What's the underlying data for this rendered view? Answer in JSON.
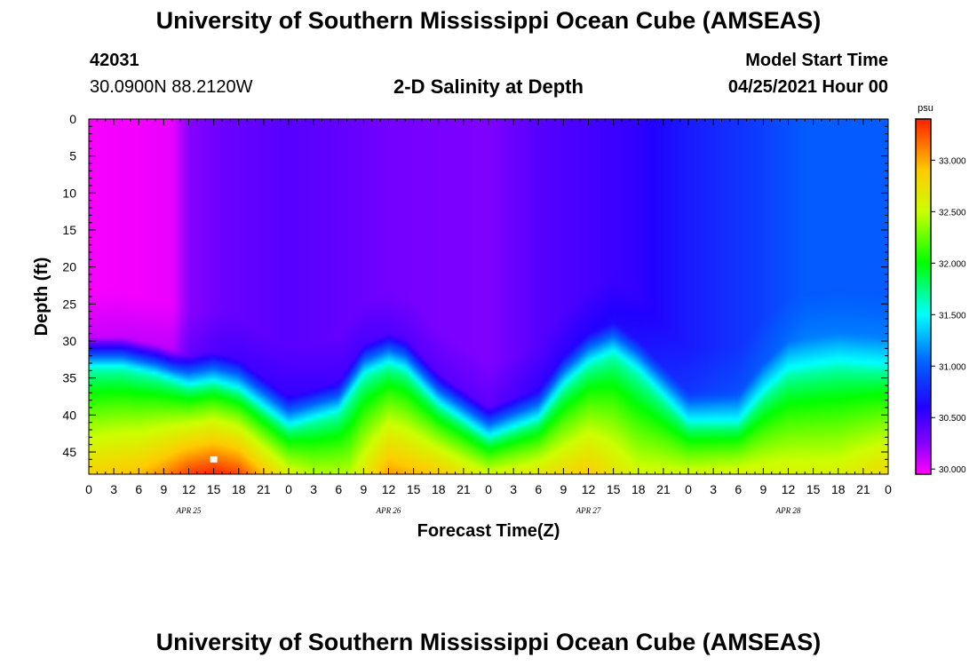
{
  "page": {
    "title": "University of Southern Mississippi Ocean Cube (AMSEAS)",
    "footer_title": "University of Southern Mississippi Ocean Cube (AMSEAS)",
    "station_id": "42031",
    "location": "30.0900N  88.2120W",
    "plot_title": "2-D Salinity at Depth",
    "model_start_label": "Model Start Time",
    "model_start_value": "04/25/2021 Hour 00"
  },
  "chart_data": {
    "type": "heatmap",
    "title": "2-D Salinity at Depth",
    "xlabel": "Forecast Time(Z)",
    "ylabel": "Depth (ft)",
    "x_range_hours": [
      0,
      96
    ],
    "x_tick_labels": [
      "0",
      "3",
      "6",
      "9",
      "12",
      "15",
      "18",
      "21",
      "0",
      "3",
      "6",
      "9",
      "12",
      "15",
      "18",
      "21",
      "0",
      "3",
      "6",
      "9",
      "12",
      "15",
      "18",
      "21",
      "0",
      "3",
      "6",
      "9",
      "12",
      "15",
      "18",
      "21",
      "0"
    ],
    "day_labels": [
      {
        "label": "APR 25",
        "hour": 12
      },
      {
        "label": "APR 26",
        "hour": 36
      },
      {
        "label": "APR 27",
        "hour": 60
      },
      {
        "label": "APR 28",
        "hour": 84
      }
    ],
    "ylim": [
      0,
      48
    ],
    "y_ticks": [
      0,
      5,
      10,
      15,
      20,
      25,
      30,
      35,
      40,
      45
    ],
    "colorbar": {
      "unit": "psu",
      "range": [
        29.95,
        33.4
      ],
      "ticks": [
        "30.000",
        "30.500",
        "31.000",
        "31.500",
        "32.000",
        "32.500",
        "33.000"
      ],
      "tick_values": [
        30.0,
        30.5,
        31.0,
        31.5,
        32.0,
        32.5,
        33.0
      ]
    },
    "colormap": [
      [
        29.95,
        "#ff00ff"
      ],
      [
        30.25,
        "#8800ff"
      ],
      [
        30.6,
        "#2200ff"
      ],
      [
        31.05,
        "#0066ff"
      ],
      [
        31.5,
        "#00ffff"
      ],
      [
        32.0,
        "#00ff00"
      ],
      [
        32.5,
        "#ccff00"
      ],
      [
        32.9,
        "#ffcc00"
      ],
      [
        33.4,
        "#ff2000"
      ]
    ],
    "surface_salinity": {
      "hours": [
        0,
        6,
        10,
        12,
        16,
        24,
        30,
        36,
        48,
        54,
        60,
        66,
        72,
        80,
        86,
        96
      ],
      "values": [
        29.97,
        29.98,
        30.0,
        30.25,
        30.35,
        30.42,
        30.38,
        30.32,
        30.28,
        30.42,
        30.48,
        30.55,
        30.72,
        30.86,
        31.0,
        31.0
      ]
    },
    "halocline_top_depth_ft": {
      "hours": [
        0,
        4,
        8,
        12,
        15,
        18,
        24,
        30,
        33,
        36,
        38,
        42,
        48,
        54,
        57,
        60,
        63,
        66,
        72,
        78,
        81,
        84,
        90,
        96
      ],
      "values": [
        33.5,
        33.5,
        34.5,
        36.0,
        35.5,
        36.5,
        41.5,
        39.5,
        34.5,
        33.0,
        33.8,
        38.5,
        43.0,
        40.5,
        36.0,
        33.0,
        31.5,
        34.0,
        41.0,
        41.0,
        37.0,
        34.0,
        33.0,
        33.5
      ]
    },
    "bottom_salinity_psu": {
      "hours": [
        0,
        6,
        9,
        12,
        15,
        18,
        24,
        30,
        36,
        42,
        48,
        54,
        60,
        66,
        72,
        78,
        84,
        90,
        96
      ],
      "values": [
        32.85,
        32.95,
        33.1,
        33.32,
        33.4,
        33.3,
        32.6,
        32.3,
        33.05,
        32.9,
        32.55,
        32.7,
        32.9,
        32.55,
        32.55,
        32.6,
        32.6,
        32.6,
        32.8
      ]
    },
    "marker": {
      "hour": 15,
      "depth_ft": 46
    }
  }
}
